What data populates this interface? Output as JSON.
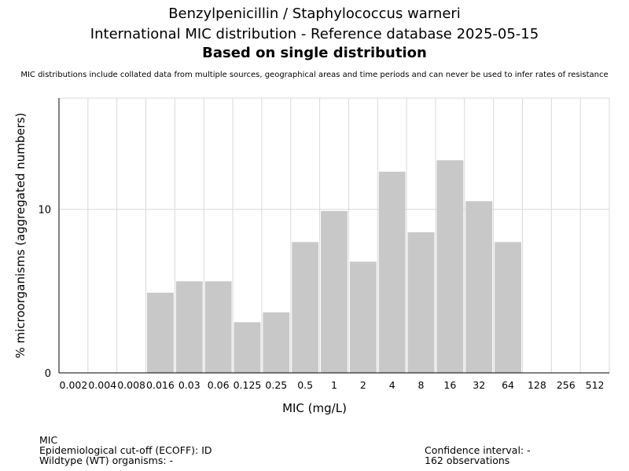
{
  "header": {
    "title_line1": "Benzylpenicillin / Staphylococcus warneri",
    "title_line2": "International MIC distribution - Reference database 2025-05-15",
    "title_line3": "Based on single distribution",
    "note": "MIC distributions include collated data from multiple sources, geographical areas and time periods and can never be used to infer rates of resistance"
  },
  "chart_data": {
    "type": "bar",
    "title": "Benzylpenicillin / Staphylococcus warneri",
    "xlabel": "MIC (mg/L)",
    "ylabel": "% microorganisms (aggregated numbers)",
    "categories": [
      "0.002",
      "0.004",
      "0.008",
      "0.016",
      "0.03",
      "0.06",
      "0.125",
      "0.25",
      "0.5",
      "1",
      "2",
      "4",
      "8",
      "16",
      "32",
      "64",
      "128",
      "256",
      "512"
    ],
    "values": [
      0,
      0,
      0,
      4.9,
      5.6,
      5.6,
      3.1,
      3.7,
      8.0,
      9.9,
      6.8,
      12.3,
      8.6,
      13.0,
      10.5,
      8.0,
      0,
      0,
      0
    ],
    "ylim": [
      0,
      16.8
    ],
    "yticks": [
      0,
      10
    ],
    "grid": true,
    "bar_color": "#c8c8c8",
    "grid_color": "#d9d9d9"
  },
  "footer": {
    "mic": "MIC",
    "ecoff": "Epidemiological cut-off (ECOFF): ID",
    "wt": "Wildtype (WT) organisms:  -",
    "ci": "Confidence interval: -",
    "obs": "162 observations"
  }
}
